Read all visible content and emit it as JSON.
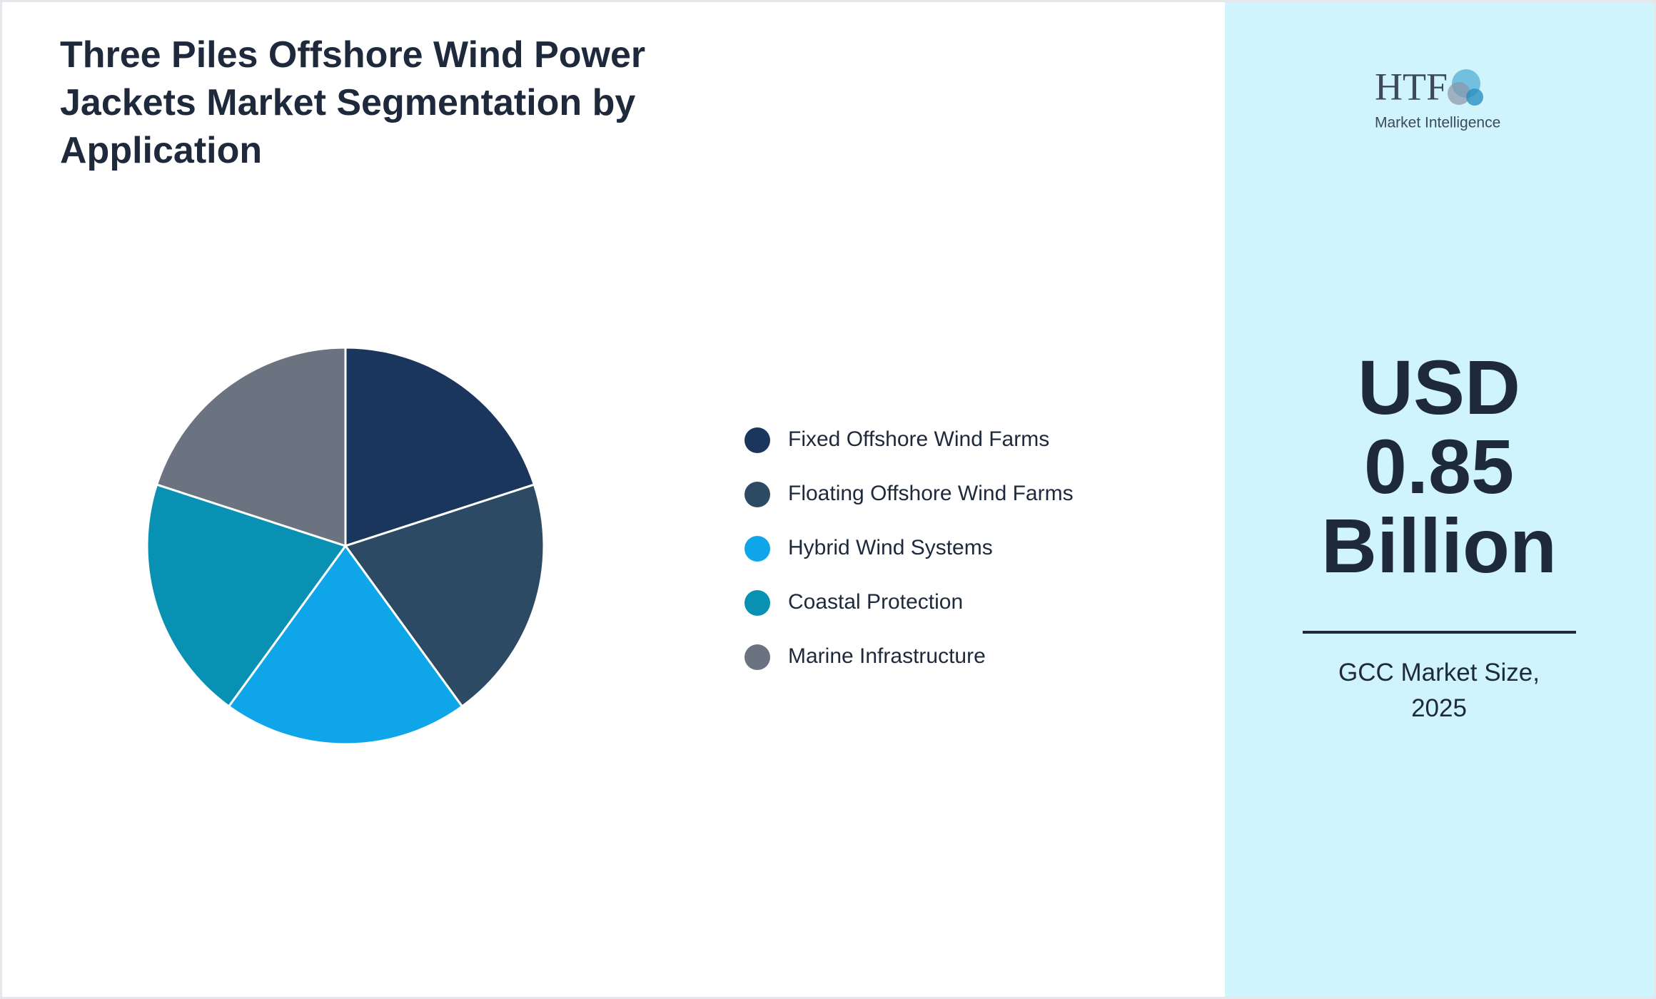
{
  "chart_data": {
    "type": "pie",
    "title": "Three Piles Offshore Wind Power Jackets Market Segmentation by Application",
    "categories": [
      "Fixed Offshore Wind Farms",
      "Floating Offshore Wind Farms",
      "Hybrid Wind Systems",
      "Coastal Protection",
      "Marine Infrastructure"
    ],
    "values": [
      20,
      20,
      20,
      20,
      20
    ],
    "colors": [
      "#1b365d",
      "#2c4a63",
      "#0ea5e9",
      "#0891b2",
      "#6b7280"
    ]
  },
  "panel": {
    "headline": "USD 0.85 Billion",
    "caption": "GCC Market Size, 2025"
  },
  "logo": {
    "name": "HTF",
    "tagline": "Market Intelligence"
  }
}
